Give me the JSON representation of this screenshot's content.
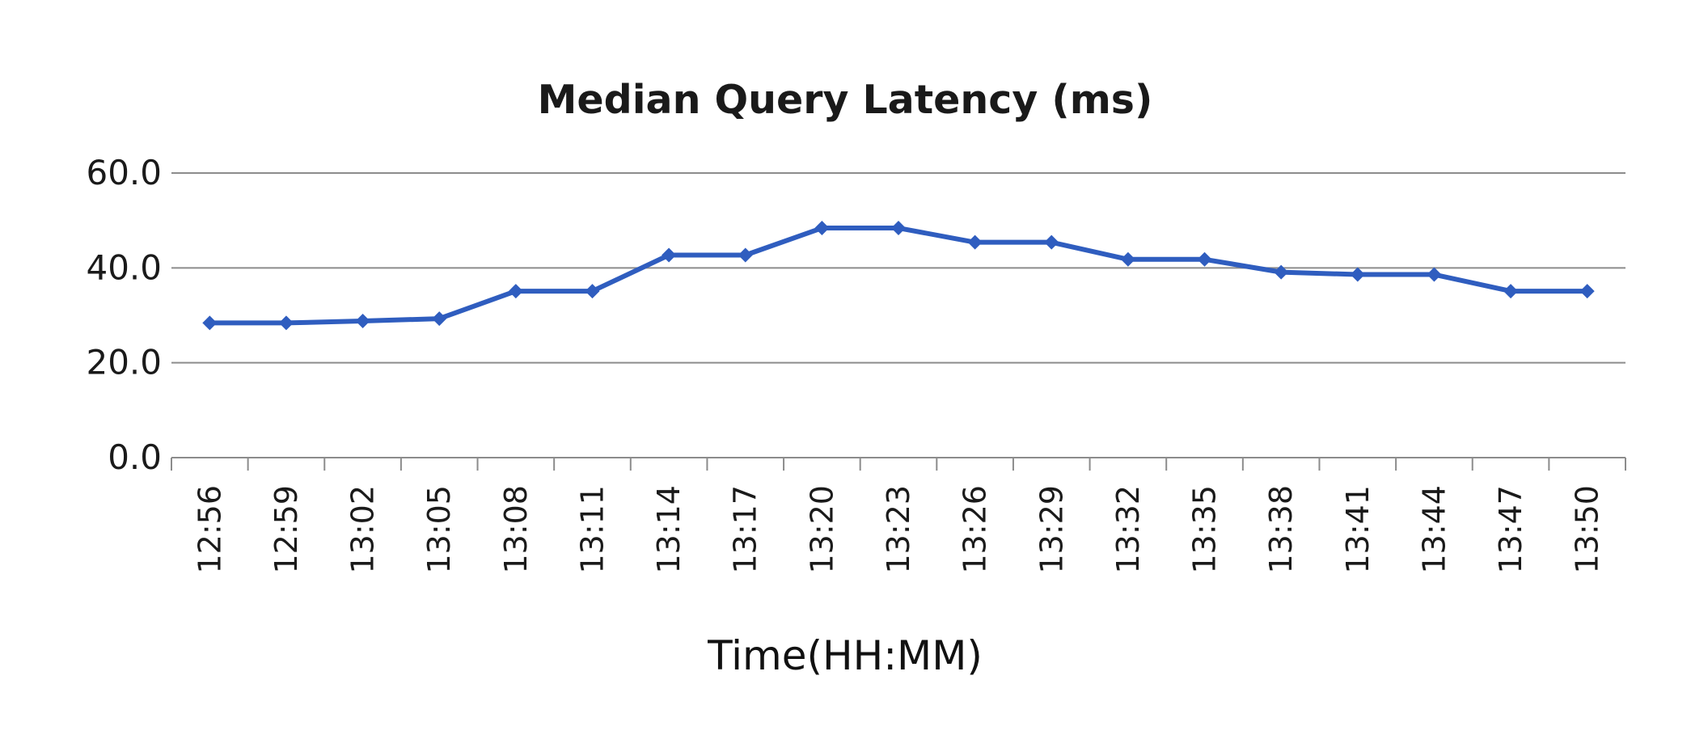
{
  "chart_data": {
    "type": "line",
    "title": "Median Query Latency (ms)",
    "xlabel": "Time(HH:MM)",
    "ylabel": "",
    "ylim": [
      0,
      60
    ],
    "yticks": [
      "0.0",
      "20.0",
      "40.0",
      "60.0"
    ],
    "grid": true,
    "legend": "none",
    "color": "#2f5dbf",
    "categories": [
      "12:56",
      "12:59",
      "13:02",
      "13:05",
      "13:08",
      "13:11",
      "13:14",
      "13:17",
      "13:20",
      "13:23",
      "13:26",
      "13:29",
      "13:32",
      "13:35",
      "13:38",
      "13:41",
      "13:44",
      "13:47",
      "13:50"
    ],
    "series": [
      {
        "values": [
          28.4,
          28.4,
          28.8,
          29.3,
          35.1,
          35.1,
          42.7,
          42.7,
          48.4,
          48.4,
          45.4,
          45.4,
          41.8,
          41.8,
          39.1,
          38.6,
          38.6,
          35.1,
          35.1
        ]
      }
    ]
  }
}
